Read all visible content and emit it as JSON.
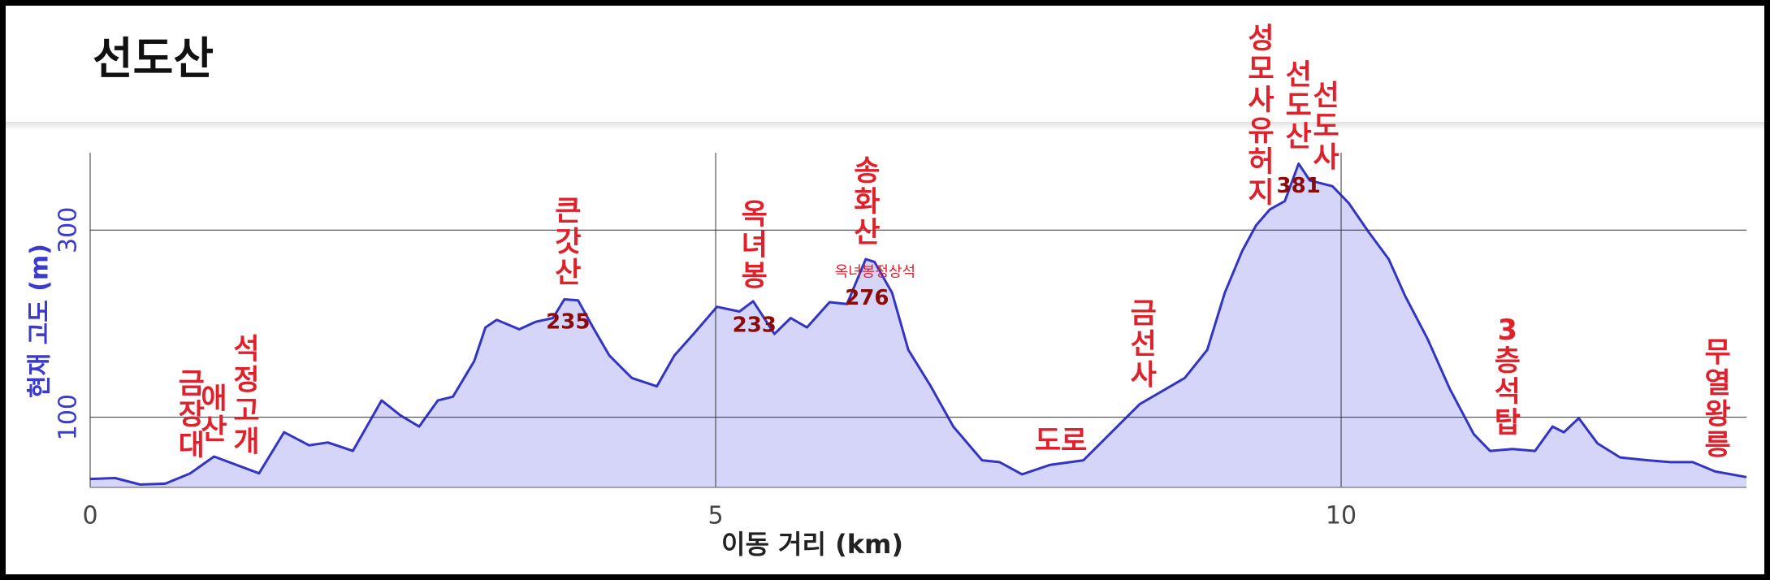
{
  "chart_data": {
    "type": "area",
    "title": "선도산",
    "x_label": "이동 거리 (km)",
    "y_label": "현재 고도 (m)",
    "line_color": "#3434c4",
    "fill_color": "#d5d5fa",
    "xlim": [
      0,
      13.24
    ],
    "ylim": [
      25,
      381
    ],
    "xticks": [
      0,
      5,
      10
    ],
    "yticks": [
      100,
      300
    ],
    "grid": true,
    "x": [
      0,
      0.2,
      0.4,
      0.6,
      0.8,
      0.99,
      1.35,
      1.55,
      1.75,
      1.9,
      2.1,
      2.33,
      2.48,
      2.63,
      2.78,
      2.9,
      3.07,
      3.16,
      3.25,
      3.43,
      3.56,
      3.7,
      3.79,
      3.9,
      4.02,
      4.15,
      4.33,
      4.53,
      4.67,
      4.83,
      5.01,
      5.19,
      5.3,
      5.47,
      5.6,
      5.73,
      5.91,
      6.05,
      6.2,
      6.27,
      6.41,
      6.54,
      6.72,
      6.9,
      7.13,
      7.27,
      7.45,
      7.67,
      7.94,
      8.21,
      8.39,
      8.57,
      8.75,
      8.93,
      9.07,
      9.21,
      9.32,
      9.43,
      9.55,
      9.66,
      9.75,
      9.93,
      10.06,
      10.22,
      10.38,
      10.51,
      10.69,
      10.87,
      11.06,
      11.19,
      11.37,
      11.55,
      11.69,
      11.78,
      11.9,
      12.05,
      12.23,
      12.45,
      12.63,
      12.81,
      12.99,
      13.24
    ],
    "values": [
      34,
      35,
      28,
      29,
      40,
      58,
      40,
      84,
      70,
      73,
      64,
      118,
      102,
      90,
      118,
      122,
      160,
      196,
      204,
      194,
      202,
      206,
      226,
      225,
      196,
      166,
      142,
      133,
      166,
      190,
      218,
      213,
      224,
      189,
      206,
      196,
      223,
      221,
      269,
      266,
      233,
      172,
      133,
      90,
      54,
      52,
      39,
      49,
      54,
      90,
      114,
      128,
      142,
      172,
      233,
      278,
      305,
      322,
      331,
      371,
      353,
      347,
      329,
      298,
      269,
      230,
      184,
      130,
      82,
      64,
      66,
      64,
      90,
      84,
      99,
      72,
      57,
      54,
      52,
      52,
      42,
      36
    ],
    "annotations": [
      {
        "text": "금장대",
        "x": 0.81
      },
      {
        "text": "애산",
        "x": 0.99
      },
      {
        "text": "석정고개",
        "x": 1.25
      },
      {
        "text": "큰갓산",
        "x": 3.82,
        "value": 235
      },
      {
        "text": "옥녀봉",
        "x": 5.31,
        "value": 233
      },
      {
        "text": "송화산",
        "x": 6.21,
        "value": 276,
        "sublabel": "옥녀봉정상석"
      },
      {
        "text": "도로",
        "x": 7.76,
        "horizontal": true
      },
      {
        "text": "금선사",
        "x": 8.42
      },
      {
        "text": "성모사유허지",
        "x": 9.36
      },
      {
        "text": "선도산",
        "x": 9.66,
        "value": 381
      },
      {
        "text": "선도사",
        "x": 9.88
      },
      {
        "text": "3층석탑",
        "x": 11.33
      },
      {
        "text": "무열왕릉",
        "x": 13.01
      }
    ]
  }
}
